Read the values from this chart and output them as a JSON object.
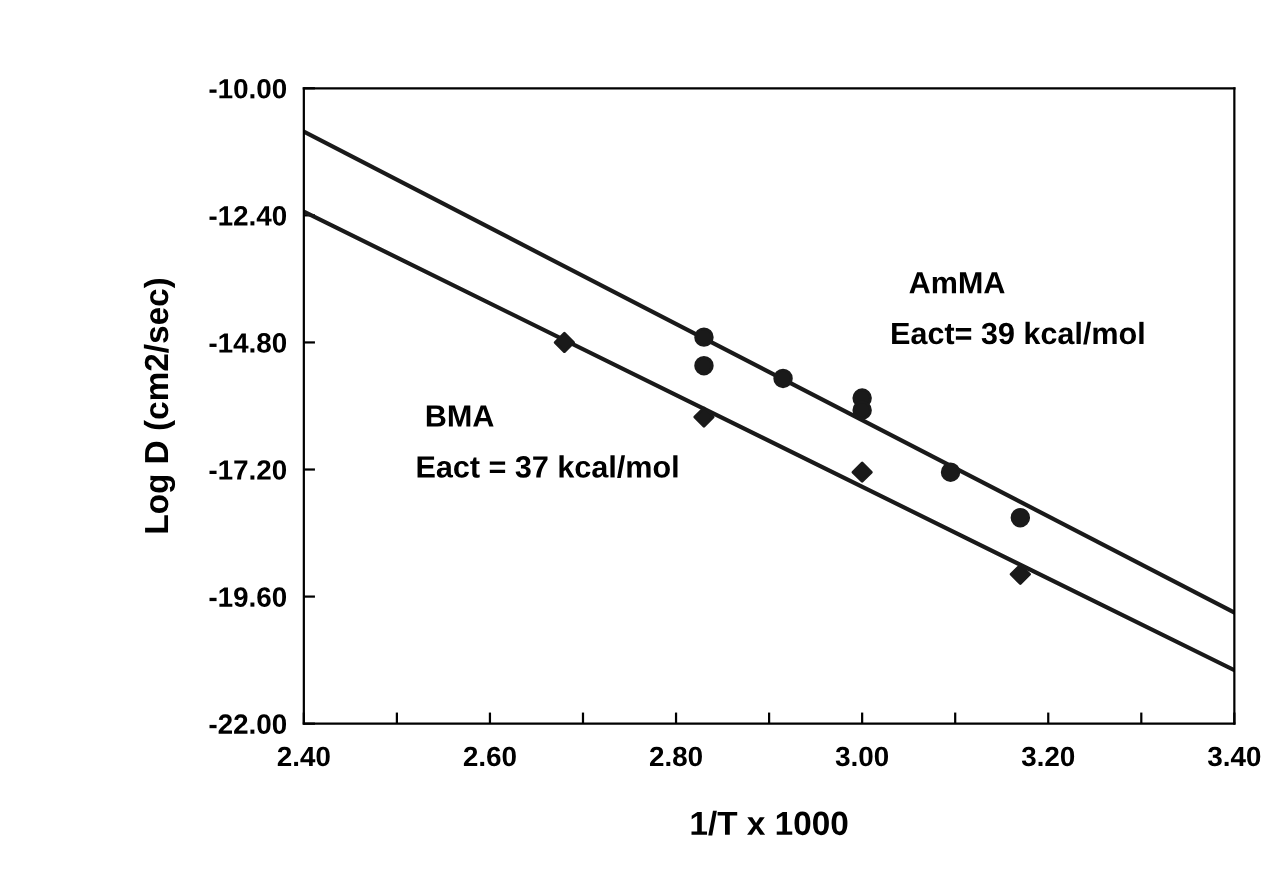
{
  "chart_data": {
    "type": "scatter",
    "xlabel": "1/T x 1000",
    "ylabel": "Log D (cm2/sec)",
    "xlim": [
      2.4,
      3.4
    ],
    "ylim": [
      -22,
      -10
    ],
    "xticks": [
      {
        "value": 2.4,
        "label": "2.40"
      },
      {
        "value": 2.5,
        "label": null
      },
      {
        "value": 2.6,
        "label": "2.60"
      },
      {
        "value": 2.7,
        "label": null
      },
      {
        "value": 2.8,
        "label": "2.80"
      },
      {
        "value": 2.9,
        "label": null
      },
      {
        "value": 3.0,
        "label": "3.00"
      },
      {
        "value": 3.1,
        "label": null
      },
      {
        "value": 3.2,
        "label": "3.20"
      },
      {
        "value": 3.3,
        "label": null
      },
      {
        "value": 3.4,
        "label": "3.40"
      }
    ],
    "yticks": [
      {
        "value": -22,
        "label": "-22.00"
      },
      {
        "value": -19.6,
        "label": "-19.60"
      },
      {
        "value": -17.2,
        "label": "-17.20"
      },
      {
        "value": -14.8,
        "label": "-14.80"
      },
      {
        "value": -12.4,
        "label": "-12.40"
      },
      {
        "value": -10,
        "label": "-10.00"
      }
    ],
    "grid": false,
    "legend": false,
    "series": [
      {
        "marker": "circle",
        "color": "#1a1a1a",
        "x": [
          2.83,
          2.83,
          2.915,
          3.0,
          3.0,
          3.095,
          3.17
        ],
        "values": [
          -14.7,
          -15.24,
          -15.48,
          -15.85,
          -16.08,
          -17.25,
          -18.11
        ]
      },
      {
        "marker": "diamond",
        "color": "#1a1a1a",
        "x": [
          2.68,
          2.83,
          3.0,
          3.17
        ],
        "values": [
          -14.8,
          -16.21,
          -17.25,
          -19.18
        ]
      },
      {
        "type": "line",
        "marker": "none",
        "color": "#1a1a1a",
        "x": [
          2.4,
          3.4
        ],
        "values": [
          -10.82,
          -19.9
        ]
      },
      {
        "type": "line",
        "marker": "none",
        "color": "#1a1a1a",
        "x": [
          2.4,
          3.4
        ],
        "values": [
          -12.33,
          -20.99
        ]
      }
    ],
    "annotations": [
      "AmMA",
      "Eact= 39 kcal/mol",
      "BMA",
      "Eact = 37 kcal/mol"
    ]
  }
}
